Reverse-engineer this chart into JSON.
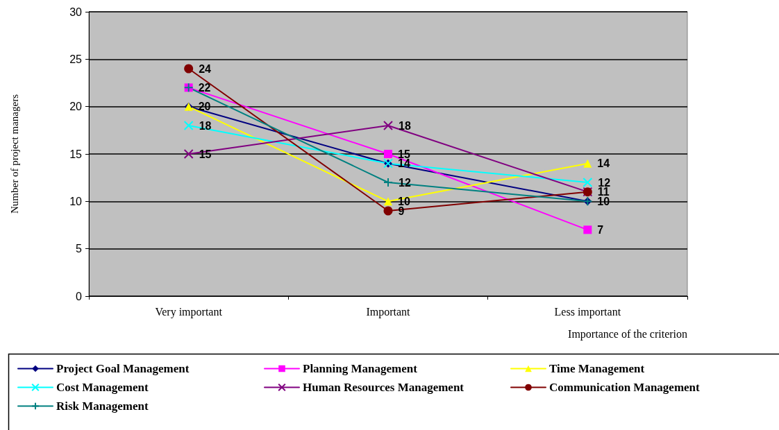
{
  "chart_data": {
    "type": "line",
    "xlabel": "Importance of the criterion",
    "ylabel": "Number of project managers",
    "categories": [
      "Very important",
      "Important",
      "Less important"
    ],
    "series": [
      {
        "name": "Project Goal Management",
        "color": "#000080",
        "marker": "diamond",
        "values": [
          20,
          14,
          10
        ],
        "value_labels": [
          "20",
          "14",
          "10"
        ]
      },
      {
        "name": "Planning Management",
        "color": "#ff00ff",
        "marker": "square",
        "values": [
          22,
          15,
          7
        ],
        "value_labels": [
          "22",
          "15",
          "7"
        ]
      },
      {
        "name": "Time Management",
        "color": "#ffff00",
        "marker": "triangle",
        "values": [
          20,
          10,
          14
        ],
        "value_labels": [
          null,
          "10",
          "14"
        ]
      },
      {
        "name": "Cost Management",
        "color": "#00ffff",
        "marker": "cross",
        "values": [
          18,
          14,
          12
        ],
        "value_labels": [
          "18",
          null,
          "12"
        ]
      },
      {
        "name": "Human Resources Management",
        "color": "#800080",
        "marker": "cross",
        "values": [
          15,
          18,
          11
        ],
        "value_labels": [
          "15",
          "18",
          null
        ]
      },
      {
        "name": "Communication Management",
        "color": "#800000",
        "marker": "circle",
        "values": [
          24,
          9,
          11
        ],
        "value_labels": [
          "24",
          "9",
          "11"
        ]
      },
      {
        "name": "Risk Management",
        "color": "#008080",
        "marker": "plus",
        "values": [
          22,
          12,
          10
        ],
        "value_labels": [
          null,
          "12",
          null
        ]
      }
    ],
    "ylim": [
      0,
      30
    ],
    "yticks": [
      0,
      5,
      10,
      15,
      20,
      25,
      30
    ],
    "grid": "y",
    "legend": "bottom"
  }
}
